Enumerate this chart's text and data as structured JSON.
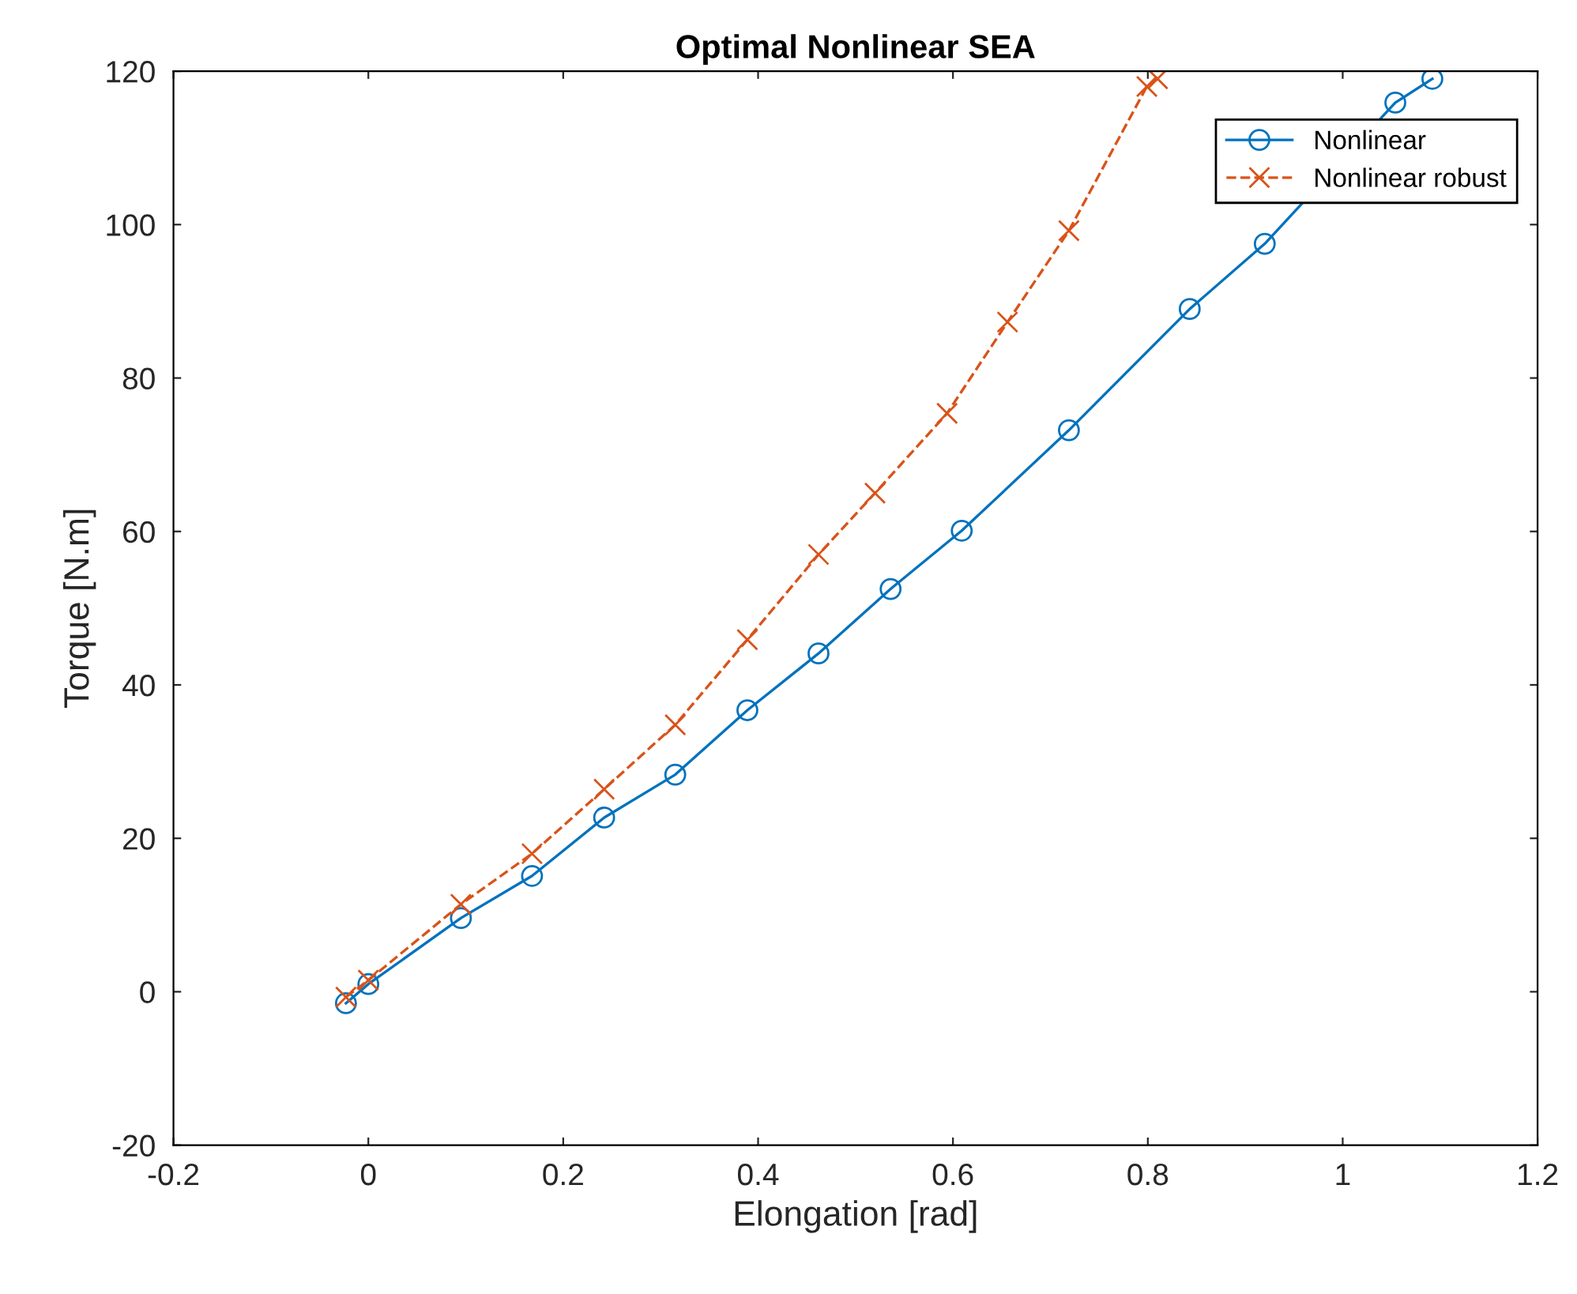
{
  "chart_data": {
    "type": "line",
    "title": "Optimal Nonlinear SEA",
    "xlabel": "Elongation [rad]",
    "ylabel": "Torque [N.m]",
    "xlim": [
      -0.2,
      1.2
    ],
    "xticks": [
      {
        "value": -0.2,
        "label": "-0.2"
      },
      0,
      0.2,
      0.4,
      0.6,
      0.8,
      1,
      1.2
    ],
    "ylim": [
      -20,
      120
    ],
    "yticks": [
      {
        "value": -20,
        "label": "-20"
      },
      0,
      20,
      40,
      60,
      80,
      100,
      120
    ],
    "grid": false,
    "legend": "top right",
    "series": [
      {
        "name": "Nonlinear",
        "color": "#0072bd",
        "marker": "circle",
        "line_style": "solid",
        "x": [
          -0.023,
          0,
          0.095,
          0.168,
          0.242,
          0.315,
          0.389,
          0.462,
          0.536,
          0.609,
          0.719,
          0.843,
          0.92,
          1.054,
          1.092
        ],
        "values": [
          -1.5,
          1,
          9.6,
          15.1,
          22.7,
          28.3,
          36.7,
          44.1,
          52.5,
          60.1,
          73.2,
          89,
          97.5,
          115.9,
          119
        ]
      },
      {
        "name": "Nonlinear robust",
        "color": "#d95319",
        "marker": "cross",
        "line_style": "dashed",
        "x": [
          -0.023,
          0,
          0.095,
          0.168,
          0.242,
          0.315,
          0.389,
          0.462,
          0.52,
          0.594,
          0.656,
          0.719,
          0.799,
          0.81
        ],
        "values": [
          -0.7,
          1.5,
          11.4,
          18,
          26.4,
          34.8,
          45.9,
          57,
          65,
          75.4,
          87.3,
          99.2,
          118,
          119
        ]
      }
    ]
  }
}
